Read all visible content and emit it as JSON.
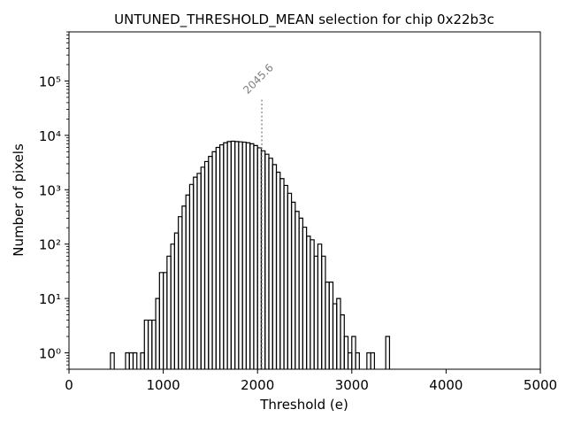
{
  "chart_data": {
    "type": "histogram",
    "title": "UNTUNED_THRESHOLD_MEAN selection for chip 0x22b3c",
    "xlabel": "Threshold (e)",
    "ylabel": "Number of pixels",
    "xlim": [
      0,
      5000
    ],
    "ylim": [
      0.5,
      800000
    ],
    "y_scale": "log",
    "grid": false,
    "x_ticks": [
      0,
      1000,
      2000,
      3000,
      4000,
      5000
    ],
    "x_tick_labels": [
      "0",
      "1000",
      "2000",
      "3000",
      "4000",
      "5000"
    ],
    "y_ticks": [
      1,
      10,
      100,
      1000,
      10000,
      100000
    ],
    "y_tick_labels": [
      "10⁰",
      "10¹",
      "10²",
      "10³",
      "10⁴",
      "10⁵"
    ],
    "bin_width": 40,
    "bin_start": 440,
    "counts": [
      1,
      0,
      0,
      0,
      1,
      1,
      1,
      0,
      1,
      4,
      4,
      4,
      10,
      30,
      30,
      60,
      100,
      160,
      320,
      500,
      800,
      1250,
      1700,
      2000,
      2600,
      3300,
      4100,
      5000,
      6000,
      6700,
      7300,
      7700,
      7800,
      7700,
      7600,
      7500,
      7300,
      7000,
      6500,
      5900,
      5200,
      4500,
      3800,
      2900,
      2100,
      1600,
      1200,
      860,
      590,
      400,
      300,
      205,
      140,
      120,
      60,
      100,
      60,
      20,
      20,
      8,
      10,
      5,
      2,
      1,
      2,
      1,
      0,
      0,
      1,
      1,
      0,
      0,
      0,
      2
    ],
    "mean_line": {
      "x": 2045.6,
      "label": "2045.6",
      "style": "dotted",
      "color": "#808080"
    },
    "colors": {
      "histogram": "#000000",
      "mean_line": "#808080",
      "mean_label": "#808080"
    }
  }
}
